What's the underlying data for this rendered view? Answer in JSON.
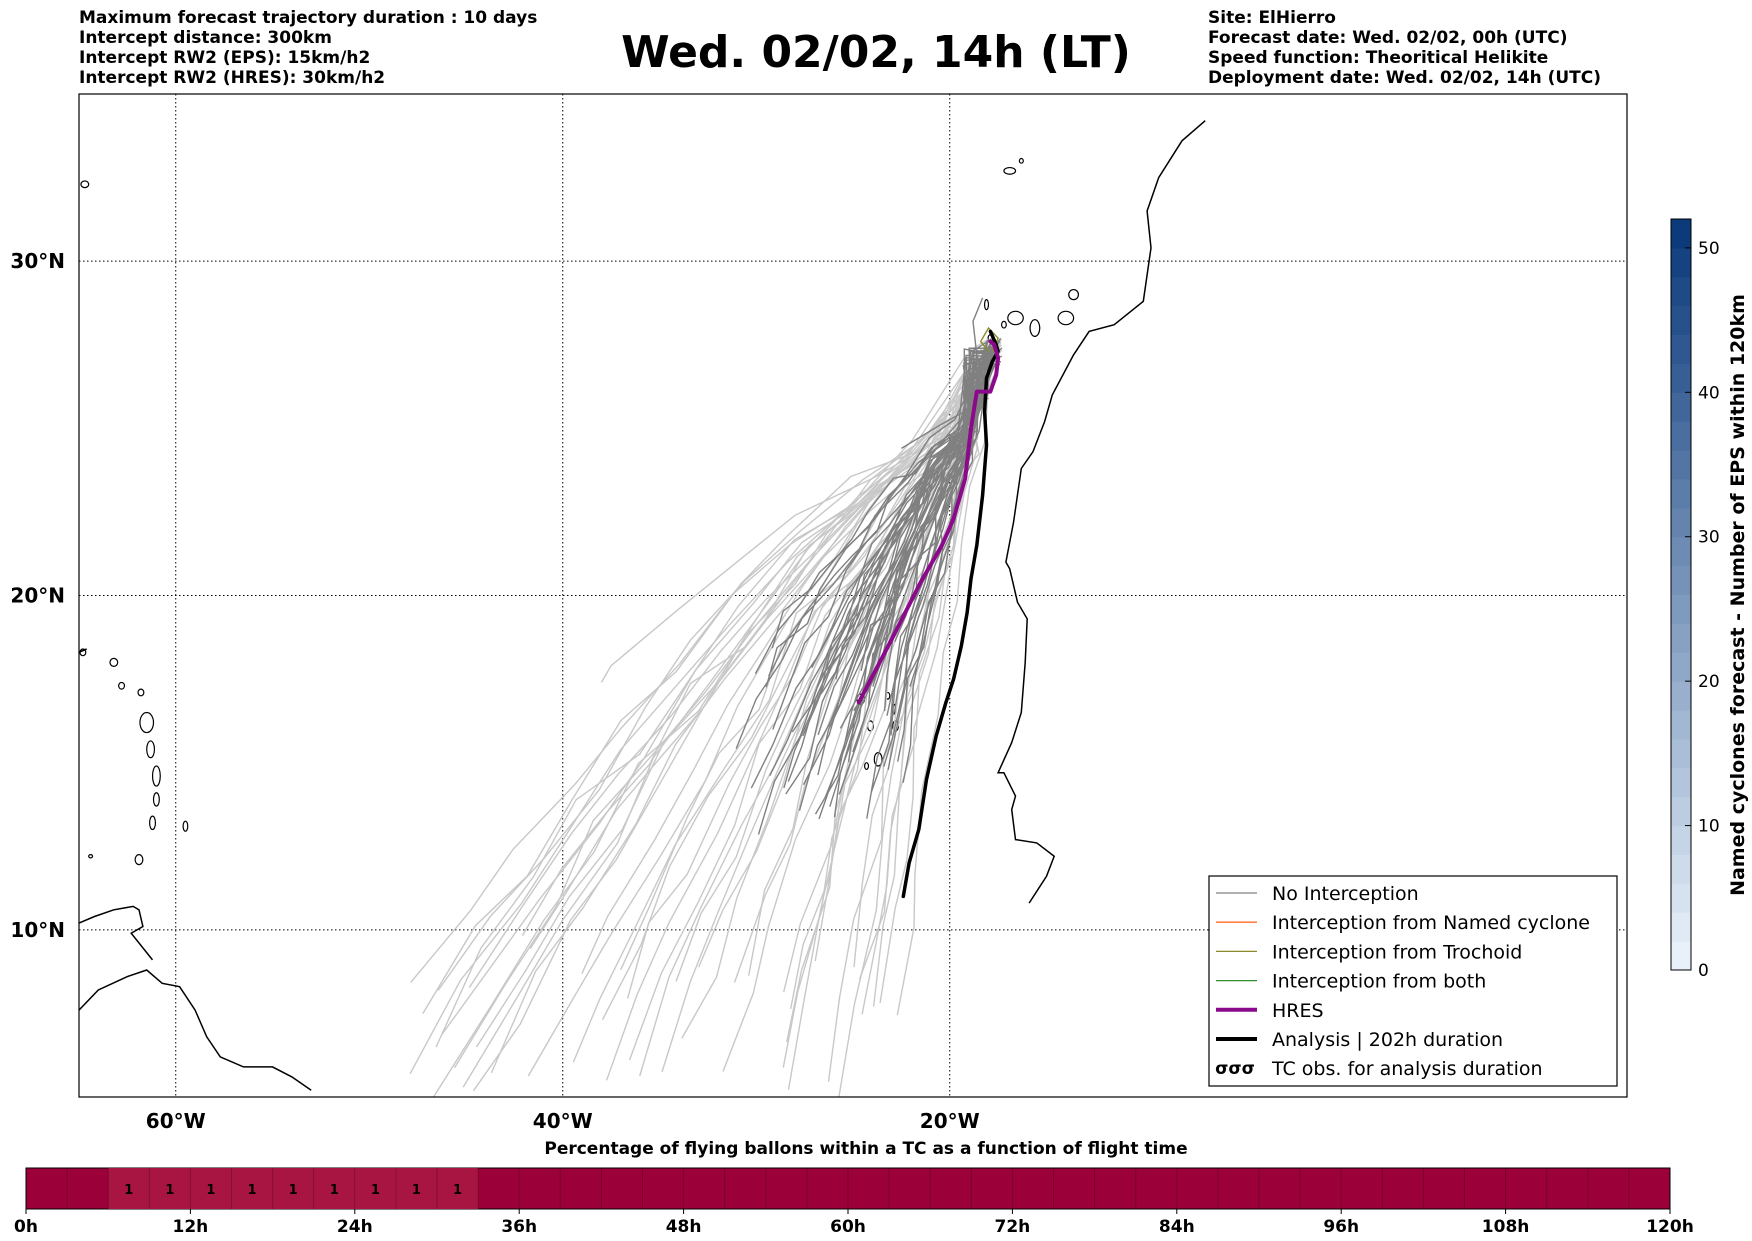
{
  "header": {
    "left_lines": [
      "Maximum forecast trajectory duration : 10 days",
      "Intercept distance: 300km",
      "Intercept RW2 (EPS):  15km/h2",
      "Intercept RW2 (HRES): 30km/h2"
    ],
    "title": "Wed. 02/02, 14h (LT)",
    "right_lines": [
      "Site: ElHierro",
      "Forecast date: Wed. 02/02, 00h (UTC)",
      "Speed function: Theoritical Helikite",
      "Deployment date: Wed. 02/02, 14h (UTC)"
    ]
  },
  "map": {
    "lon_range": [
      -65,
      15
    ],
    "lat_range": [
      5,
      35
    ],
    "lon_ticks": [
      {
        "value": -60,
        "label": "60°W"
      },
      {
        "value": -40,
        "label": "40°W"
      },
      {
        "value": -20,
        "label": "20°W"
      }
    ],
    "lat_ticks": [
      {
        "value": 30,
        "label": "30°N"
      },
      {
        "value": 20,
        "label": "20°N"
      },
      {
        "value": 10,
        "label": "10°N"
      }
    ],
    "grid": "dotted",
    "colors": {
      "no_interception": "#808080",
      "no_interception_light": "#c8c8c8",
      "named_cyclone": "#ff6a2a",
      "trochoid": "#8b8b2a",
      "both": "#2e8b2e",
      "hres": "#8b0a8b",
      "analysis": "#000000"
    },
    "hres_track": [
      [
        -17.9,
        27.6
      ],
      [
        -17.7,
        27.5
      ],
      [
        -17.5,
        27.1
      ],
      [
        -17.6,
        26.6
      ],
      [
        -17.9,
        26.1
      ],
      [
        -18.6,
        26.1
      ],
      [
        -18.9,
        25.0
      ],
      [
        -19.2,
        23.5
      ],
      [
        -19.8,
        22.3
      ],
      [
        -20.4,
        21.5
      ],
      [
        -21.5,
        20.4
      ],
      [
        -22.9,
        18.8
      ],
      [
        -23.8,
        17.8
      ],
      [
        -24.7,
        16.8
      ]
    ],
    "analysis_track": [
      [
        -17.9,
        27.9
      ],
      [
        -17.6,
        27.5
      ],
      [
        -17.5,
        27.3
      ],
      [
        -17.8,
        27.0
      ],
      [
        -18.1,
        26.5
      ],
      [
        -18.2,
        25.5
      ],
      [
        -18.1,
        24.5
      ],
      [
        -18.3,
        23.0
      ],
      [
        -18.6,
        21.5
      ],
      [
        -18.9,
        20.5
      ],
      [
        -19.1,
        19.5
      ],
      [
        -19.4,
        18.5
      ],
      [
        -19.8,
        17.5
      ],
      [
        -20.2,
        16.8
      ],
      [
        -20.7,
        15.8
      ],
      [
        -21.2,
        14.5
      ],
      [
        -21.6,
        13.0
      ],
      [
        -22.1,
        12.0
      ],
      [
        -22.4,
        11.0
      ]
    ]
  },
  "legend": {
    "items": [
      {
        "label": "No Interception",
        "style": "thin",
        "color": "#808080"
      },
      {
        "label": "Interception from Named cyclone",
        "style": "thin",
        "color": "#ff6a2a"
      },
      {
        "label": "Interception from Trochoid",
        "style": "thin",
        "color": "#8b8b2a"
      },
      {
        "label": "Interception from both",
        "style": "thin",
        "color": "#2e8b2e"
      },
      {
        "label": "HRES",
        "style": "thick",
        "color": "#8b0a8b"
      },
      {
        "label": "Analysis | 202h duration",
        "style": "thick",
        "color": "#000000"
      },
      {
        "label": "TC obs. for analysis duration",
        "style": "symbol",
        "color": "#000000",
        "symbol": "σσσ"
      }
    ]
  },
  "colorbar": {
    "label": "Named cyclones forecast - Number of EPS within 120km",
    "range": [
      0,
      52
    ],
    "ticks": [
      "0",
      "10",
      "20",
      "30",
      "40",
      "50"
    ],
    "color_low": "#e8f1fa",
    "color_high": "#0c3b7c"
  },
  "timeline": {
    "title": "Percentage of flying ballons within a TC as a function of flight time",
    "hours_max": 120,
    "ticks": [
      "0h",
      "12h",
      "24h",
      "36h",
      "48h",
      "60h",
      "72h",
      "84h",
      "96h",
      "108h",
      "120h"
    ],
    "bar_color": "#9b0038",
    "segment_color": "#a81542",
    "segment_start_hour": 6,
    "segment_end_hour": 33,
    "values": [
      "1",
      "1",
      "1",
      "1",
      "1",
      "1",
      "1",
      "1",
      "1"
    ]
  }
}
